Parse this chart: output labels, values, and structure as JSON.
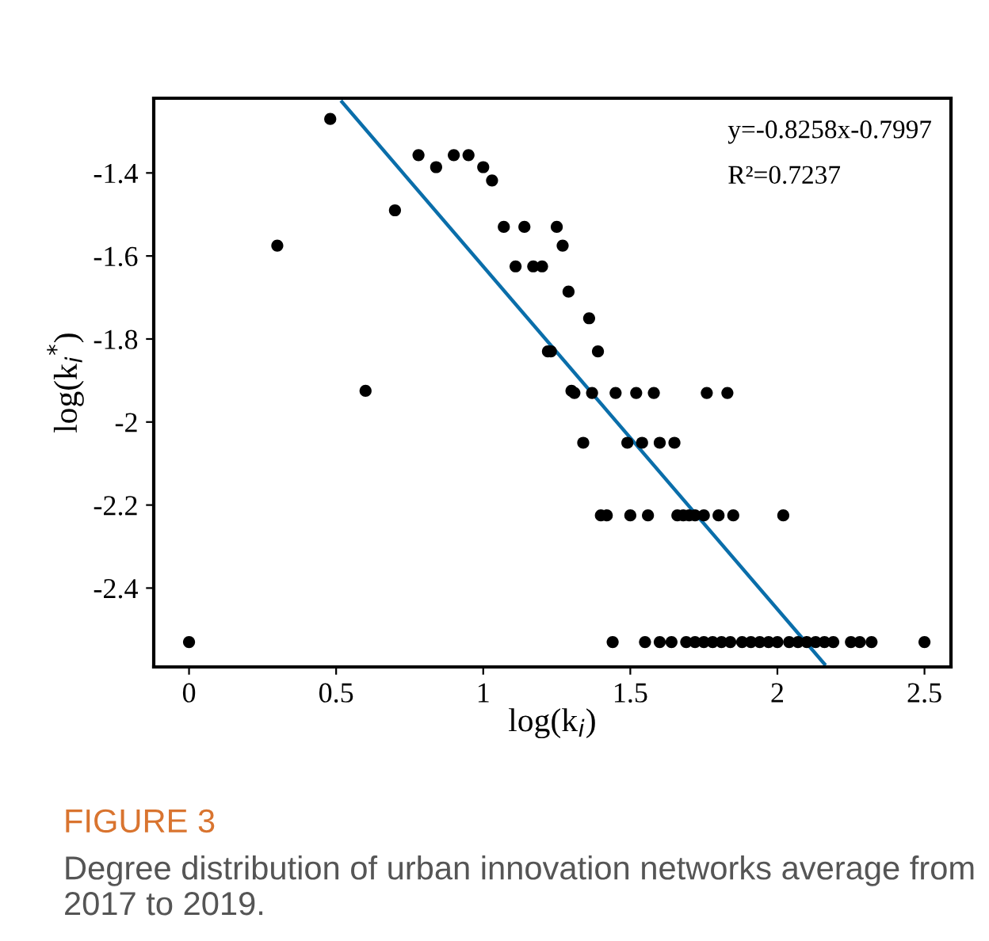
{
  "chart_data": {
    "type": "scatter",
    "xlabel": "log(k$_{i}$)",
    "ylabel": "log(k$_{i}$$^{*}$)",
    "annotations": [
      "y=-0.8258x-0.7997",
      "R²=0.7237",
      "FIGURE 3",
      "Degree distribution of urban innovation networks average from 2017 to 2019."
    ],
    "xlim": [
      -0.12,
      2.59
    ],
    "ylim": [
      -2.59,
      -1.22
    ],
    "xticks": [
      0,
      0.5,
      1,
      1.5,
      2,
      2.5
    ],
    "yticks": [
      -2.4,
      -2.2,
      -2,
      -1.8,
      -1.6,
      -1.4
    ],
    "grid": false,
    "legend": false,
    "series": [
      {
        "marker": "circle",
        "color": "#000000",
        "x": [
          0,
          0.3,
          0.48,
          0.6,
          0.7,
          0.78,
          0.84,
          0.9,
          0.95,
          1.0,
          1.03,
          1.07,
          1.14,
          1.11,
          1.17,
          1.2,
          1.25,
          1.27,
          1.29,
          1.22,
          1.3,
          1.36,
          1.23,
          1.39,
          1.31,
          1.37,
          1.45,
          1.52,
          1.58,
          1.76,
          1.83,
          1.34,
          1.49,
          1.54,
          1.6,
          1.65,
          1.4,
          1.42,
          1.5,
          1.56,
          1.66,
          1.68,
          1.7,
          1.72,
          1.75,
          1.8,
          1.85,
          2.02,
          1.44,
          1.55,
          1.6,
          1.64,
          1.69,
          1.72,
          1.75,
          1.78,
          1.81,
          1.84,
          1.88,
          1.91,
          1.94,
          1.97,
          2.0,
          2.04,
          2.07,
          2.1,
          2.13,
          2.16,
          2.19,
          2.25,
          2.28,
          2.32,
          2.5
        ],
        "values": [
          -2.53,
          -1.575,
          -1.27,
          -1.925,
          -1.49,
          -1.357,
          -1.386,
          -1.357,
          -1.357,
          -1.386,
          -1.418,
          -1.53,
          -1.53,
          -1.625,
          -1.625,
          -1.625,
          -1.53,
          -1.575,
          -1.686,
          -1.83,
          -1.925,
          -1.75,
          -1.83,
          -1.83,
          -1.93,
          -1.93,
          -1.93,
          -1.93,
          -1.93,
          -1.93,
          -1.93,
          -2.05,
          -2.05,
          -2.05,
          -2.05,
          -2.05,
          -2.225,
          -2.225,
          -2.225,
          -2.225,
          -2.225,
          -2.225,
          -2.225,
          -2.225,
          -2.225,
          -2.225,
          -2.225,
          -2.225,
          -2.53,
          -2.53,
          -2.53,
          -2.53,
          -2.53,
          -2.53,
          -2.53,
          -2.53,
          -2.53,
          -2.53,
          -2.53,
          -2.53,
          -2.53,
          -2.53,
          -2.53,
          -2.53,
          -2.53,
          -2.53,
          -2.53,
          -2.53,
          -2.53,
          -2.53,
          -2.53,
          -2.53,
          -2.53
        ]
      },
      {
        "type": "line",
        "color": "#0a6eaa",
        "line_style": "solid",
        "x": [
          0.52,
          2.16
        ],
        "values": [
          -1.229,
          -2.583
        ]
      }
    ]
  }
}
